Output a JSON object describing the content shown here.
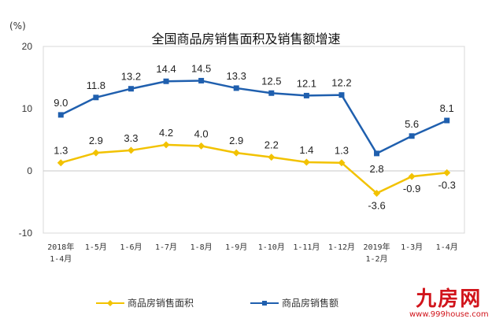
{
  "chart_data": {
    "type": "line",
    "title": "全国商品房销售面积及销售额增速",
    "ylabel": "(%)",
    "ylim": [
      -10,
      20
    ],
    "yticks": [
      "20",
      "10",
      "0",
      "-10"
    ],
    "ytick_values": [
      20,
      10,
      0,
      -10
    ],
    "categories": [
      [
        "2018年",
        "1-4月"
      ],
      [
        "1-5月"
      ],
      [
        "1-6月"
      ],
      [
        "1-7月"
      ],
      [
        "1-8月"
      ],
      [
        "1-9月"
      ],
      [
        "1-10月"
      ],
      [
        "1-11月"
      ],
      [
        "1-12月"
      ],
      [
        "2019年",
        "1-2月"
      ],
      [
        "1-3月"
      ],
      [
        "1-4月"
      ]
    ],
    "grid": false,
    "legend_position": "bottom",
    "series": [
      {
        "name": "商品房销售面积",
        "color": "#f2c200",
        "marker": "diamond",
        "values": [
          1.3,
          2.9,
          3.3,
          4.2,
          4.0,
          2.9,
          2.2,
          1.4,
          1.3,
          -3.6,
          -0.9,
          -0.3
        ],
        "labels": [
          "1.3",
          "2.9",
          "3.3",
          "4.2",
          "4.0",
          "2.9",
          "2.2",
          "1.4",
          "1.3",
          "-3.6",
          "-0.9",
          "-0.3"
        ]
      },
      {
        "name": "商品房销售额",
        "color": "#1f5fae",
        "marker": "square",
        "values": [
          9.0,
          11.8,
          13.2,
          14.4,
          14.5,
          13.3,
          12.5,
          12.1,
          12.2,
          2.8,
          5.6,
          8.1
        ],
        "labels": [
          "9.0",
          "11.8",
          "13.2",
          "14.4",
          "14.5",
          "13.3",
          "12.5",
          "12.1",
          "12.2",
          "2.8",
          "5.6",
          "8.1"
        ]
      }
    ]
  },
  "watermark": {
    "logo_text": "九房网",
    "url": "www.999house.com"
  }
}
